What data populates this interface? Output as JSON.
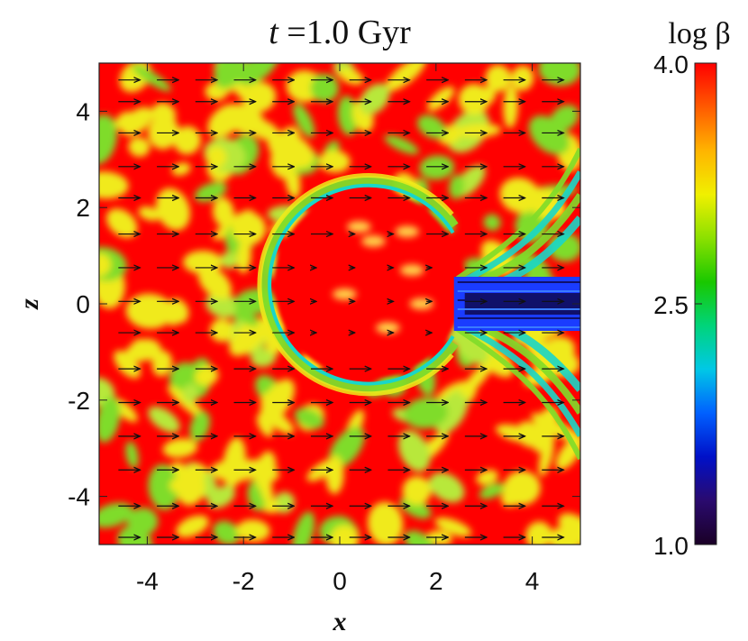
{
  "chart_data": {
    "type": "heatmap",
    "title_var": "t",
    "title_rest": " =1.0 Gyr",
    "xlabel": "x",
    "ylabel": "z",
    "xlim": [
      -5,
      5
    ],
    "ylim": [
      -5,
      5
    ],
    "x_ticks": [
      "-4",
      "-2",
      "0",
      "2",
      "4"
    ],
    "y_ticks": [
      "4",
      "2",
      "0",
      "-2",
      "-4"
    ],
    "x_tick_values": [
      -4,
      -2,
      0,
      2,
      4
    ],
    "y_tick_values": [
      4,
      2,
      0,
      -2,
      -4
    ],
    "colorbar": {
      "label": "log β",
      "range": [
        1.0,
        4.0
      ],
      "ticks": [
        "4.0",
        "2.5",
        "1.0"
      ],
      "tick_values": [
        4.0,
        2.5,
        1.0
      ],
      "colormap": [
        "#1a0026",
        "#2a0a6e",
        "#0010c8",
        "#0060ff",
        "#00c8e6",
        "#00d47a",
        "#19c800",
        "#8be000",
        "#f0f000",
        "#ffb400",
        "#ff5a00",
        "#ff0000"
      ]
    },
    "features": {
      "background_description": "turbulent mix of log beta ~3.4-4.0",
      "bubble_center": [
        0.6,
        0.4
      ],
      "bubble_radius": 2.1,
      "tail_direction": "+x",
      "tail_min_value": 1.0
    },
    "vector_field": {
      "quantity": "velocity",
      "direction": "+x",
      "rows_z": [
        4.65,
        4.2,
        3.55,
        2.85,
        2.2,
        1.45,
        0.75,
        0.05,
        -0.6,
        -1.35,
        -2.05,
        -2.75,
        -3.45,
        -4.2,
        -4.85
      ],
      "cols_x": [
        -4.6,
        -3.8,
        -3.0,
        -2.2,
        -1.4,
        -0.6,
        0.2,
        1.0,
        1.8,
        2.6,
        3.4,
        4.2
      ]
    }
  }
}
